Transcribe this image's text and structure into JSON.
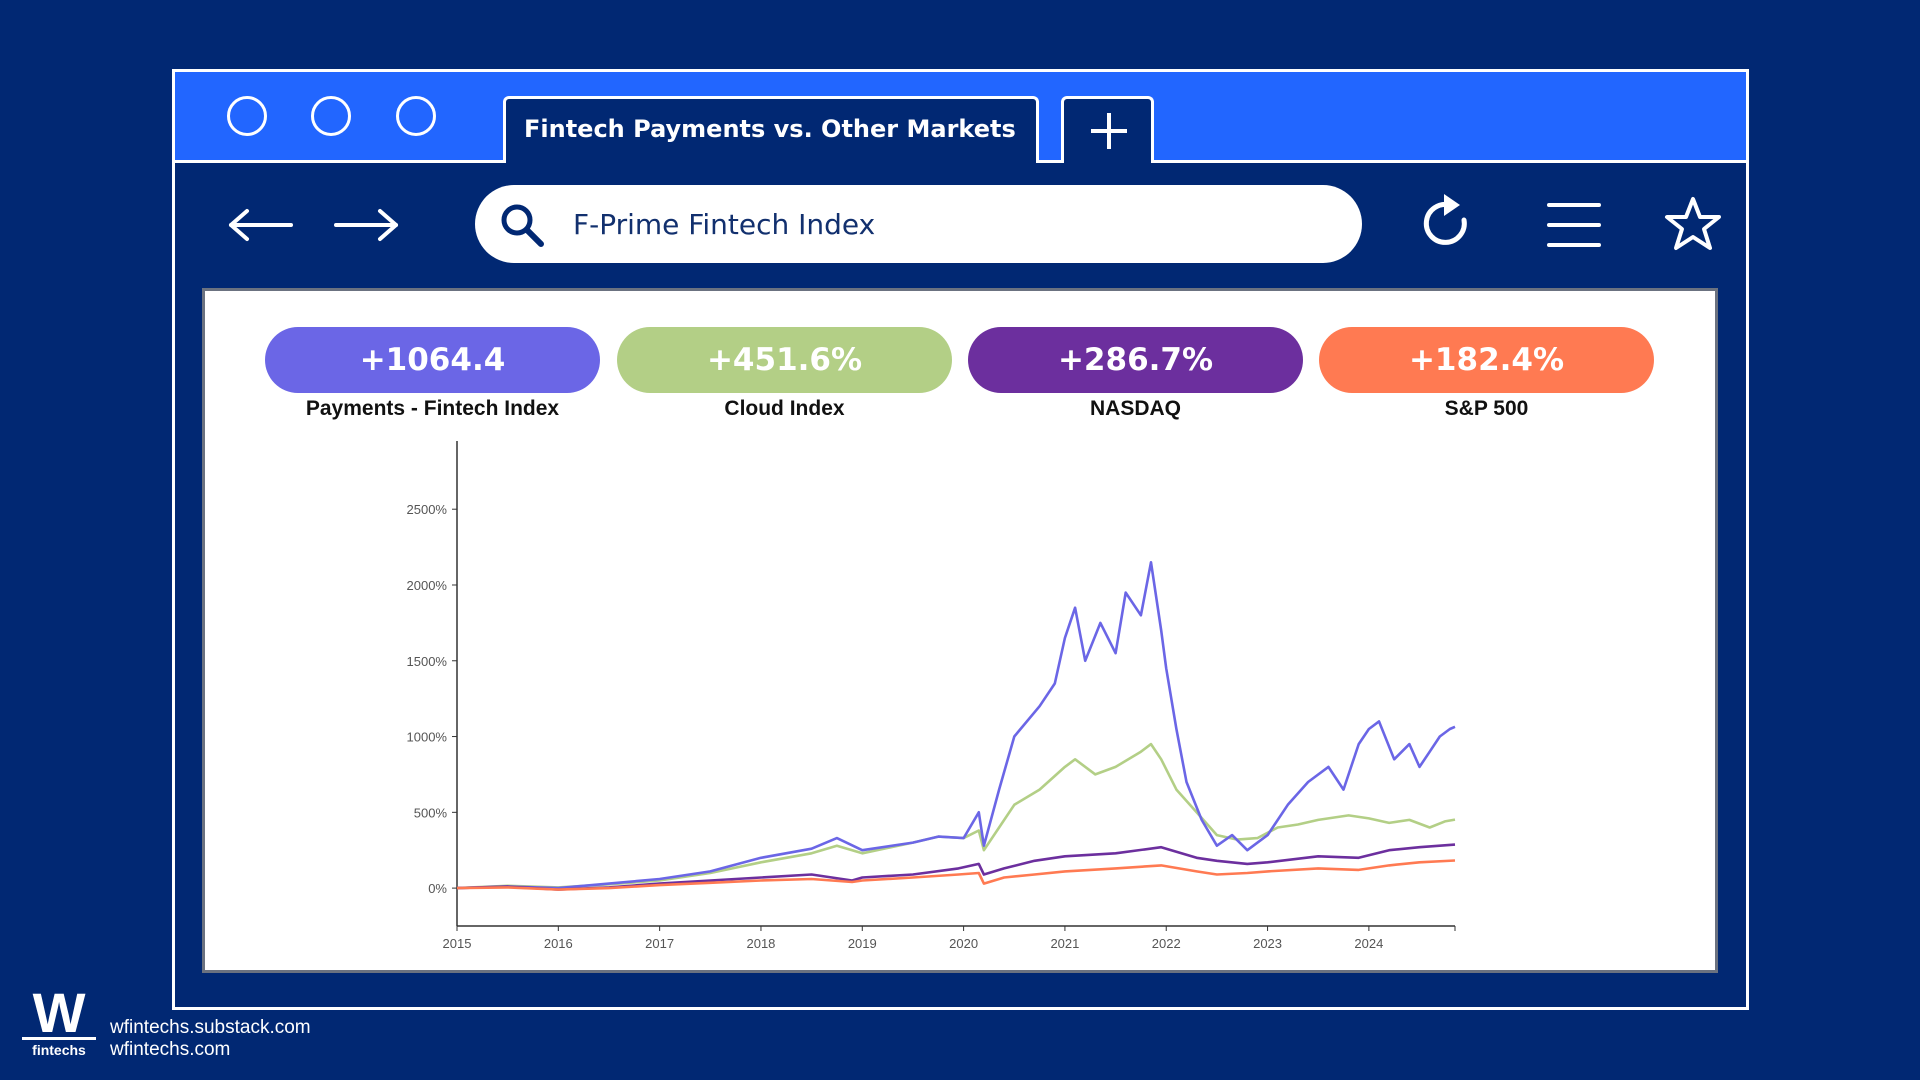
{
  "browser": {
    "tab_title": "Fintech Payments vs. Other Markets",
    "search_value": "F-Prime Fintech Index"
  },
  "icons": [
    "window-circle-icon",
    "plus-icon",
    "back-arrow-icon",
    "forward-arrow-icon",
    "search-icon",
    "reload-icon",
    "menu-icon",
    "star-icon"
  ],
  "stats": [
    {
      "value": "+1064.4",
      "label": "Payments - Fintech Index",
      "color": "#6b66e6"
    },
    {
      "value": "+451.6%",
      "label": "Cloud Index",
      "color": "#b3cf86"
    },
    {
      "value": "+286.7%",
      "label": "NASDAQ",
      "color": "#6c2f9e"
    },
    {
      "value": "+182.4%",
      "label": "S&P 500",
      "color": "#ff7a52"
    }
  ],
  "chart_data": {
    "type": "line",
    "x_ticks": [
      "2015",
      "2016",
      "2017",
      "2018",
      "2019",
      "2020",
      "2021",
      "2022",
      "2023",
      "2024"
    ],
    "y_ticks": [
      "0%",
      "500%",
      "1000%",
      "1500%",
      "2000%",
      "2500%"
    ],
    "ylim": [
      -250,
      2950
    ],
    "xlim": [
      2015.0,
      2024.85
    ],
    "grid": false,
    "series": [
      {
        "name": "Payments - Fintech Index",
        "color": "#6b66e6",
        "points": [
          [
            2015.0,
            0
          ],
          [
            2015.5,
            10
          ],
          [
            2016.0,
            0
          ],
          [
            2016.5,
            30
          ],
          [
            2017.0,
            60
          ],
          [
            2017.5,
            110
          ],
          [
            2018.0,
            200
          ],
          [
            2018.5,
            260
          ],
          [
            2018.75,
            330
          ],
          [
            2019.0,
            250
          ],
          [
            2019.5,
            300
          ],
          [
            2019.75,
            340
          ],
          [
            2020.0,
            330
          ],
          [
            2020.15,
            500
          ],
          [
            2020.2,
            280
          ],
          [
            2020.35,
            650
          ],
          [
            2020.5,
            1000
          ],
          [
            2020.75,
            1200
          ],
          [
            2020.9,
            1350
          ],
          [
            2021.0,
            1650
          ],
          [
            2021.1,
            1850
          ],
          [
            2021.2,
            1500
          ],
          [
            2021.35,
            1750
          ],
          [
            2021.5,
            1550
          ],
          [
            2021.6,
            1950
          ],
          [
            2021.75,
            1800
          ],
          [
            2021.85,
            2150
          ],
          [
            2021.95,
            1700
          ],
          [
            2022.0,
            1450
          ],
          [
            2022.1,
            1050
          ],
          [
            2022.2,
            700
          ],
          [
            2022.35,
            450
          ],
          [
            2022.5,
            280
          ],
          [
            2022.65,
            350
          ],
          [
            2022.8,
            250
          ],
          [
            2023.0,
            350
          ],
          [
            2023.2,
            550
          ],
          [
            2023.4,
            700
          ],
          [
            2023.6,
            800
          ],
          [
            2023.75,
            650
          ],
          [
            2023.9,
            950
          ],
          [
            2024.0,
            1050
          ],
          [
            2024.1,
            1100
          ],
          [
            2024.25,
            850
          ],
          [
            2024.4,
            950
          ],
          [
            2024.5,
            800
          ],
          [
            2024.6,
            900
          ],
          [
            2024.7,
            1000
          ],
          [
            2024.8,
            1050
          ],
          [
            2024.85,
            1064
          ]
        ]
      },
      {
        "name": "Cloud Index",
        "color": "#b3cf86",
        "points": [
          [
            2015.0,
            0
          ],
          [
            2015.5,
            15
          ],
          [
            2016.0,
            5
          ],
          [
            2016.5,
            25
          ],
          [
            2017.0,
            50
          ],
          [
            2017.5,
            100
          ],
          [
            2018.0,
            170
          ],
          [
            2018.5,
            230
          ],
          [
            2018.75,
            280
          ],
          [
            2019.0,
            230
          ],
          [
            2019.5,
            300
          ],
          [
            2019.75,
            340
          ],
          [
            2020.0,
            330
          ],
          [
            2020.15,
            380
          ],
          [
            2020.2,
            250
          ],
          [
            2020.35,
            400
          ],
          [
            2020.5,
            550
          ],
          [
            2020.75,
            650
          ],
          [
            2021.0,
            800
          ],
          [
            2021.1,
            850
          ],
          [
            2021.3,
            750
          ],
          [
            2021.5,
            800
          ],
          [
            2021.75,
            900
          ],
          [
            2021.85,
            950
          ],
          [
            2021.95,
            850
          ],
          [
            2022.1,
            650
          ],
          [
            2022.3,
            500
          ],
          [
            2022.5,
            350
          ],
          [
            2022.7,
            320
          ],
          [
            2022.9,
            330
          ],
          [
            2023.1,
            400
          ],
          [
            2023.3,
            420
          ],
          [
            2023.5,
            450
          ],
          [
            2023.8,
            480
          ],
          [
            2024.0,
            460
          ],
          [
            2024.2,
            430
          ],
          [
            2024.4,
            450
          ],
          [
            2024.6,
            400
          ],
          [
            2024.75,
            440
          ],
          [
            2024.85,
            452
          ]
        ]
      },
      {
        "name": "NASDAQ",
        "color": "#6c2f9e",
        "points": [
          [
            2015.0,
            0
          ],
          [
            2015.5,
            10
          ],
          [
            2016.0,
            -10
          ],
          [
            2016.5,
            5
          ],
          [
            2017.0,
            30
          ],
          [
            2017.5,
            50
          ],
          [
            2018.0,
            70
          ],
          [
            2018.5,
            90
          ],
          [
            2018.9,
            50
          ],
          [
            2019.0,
            70
          ],
          [
            2019.5,
            90
          ],
          [
            2019.95,
            130
          ],
          [
            2020.15,
            160
          ],
          [
            2020.2,
            90
          ],
          [
            2020.4,
            130
          ],
          [
            2020.7,
            180
          ],
          [
            2021.0,
            210
          ],
          [
            2021.5,
            230
          ],
          [
            2021.95,
            270
          ],
          [
            2022.3,
            200
          ],
          [
            2022.5,
            180
          ],
          [
            2022.8,
            160
          ],
          [
            2023.0,
            170
          ],
          [
            2023.5,
            210
          ],
          [
            2023.9,
            200
          ],
          [
            2024.2,
            250
          ],
          [
            2024.5,
            270
          ],
          [
            2024.85,
            287
          ]
        ]
      },
      {
        "name": "S&P 500",
        "color": "#ff7a52",
        "points": [
          [
            2015.0,
            0
          ],
          [
            2015.5,
            5
          ],
          [
            2016.0,
            -10
          ],
          [
            2016.5,
            0
          ],
          [
            2017.0,
            20
          ],
          [
            2017.5,
            35
          ],
          [
            2018.0,
            50
          ],
          [
            2018.5,
            60
          ],
          [
            2018.9,
            40
          ],
          [
            2019.0,
            50
          ],
          [
            2019.5,
            70
          ],
          [
            2019.95,
            90
          ],
          [
            2020.15,
            100
          ],
          [
            2020.2,
            30
          ],
          [
            2020.4,
            70
          ],
          [
            2020.7,
            90
          ],
          [
            2021.0,
            110
          ],
          [
            2021.5,
            130
          ],
          [
            2021.95,
            150
          ],
          [
            2022.3,
            110
          ],
          [
            2022.5,
            90
          ],
          [
            2022.8,
            100
          ],
          [
            2023.0,
            110
          ],
          [
            2023.5,
            130
          ],
          [
            2023.9,
            120
          ],
          [
            2024.2,
            150
          ],
          [
            2024.5,
            170
          ],
          [
            2024.85,
            182
          ]
        ]
      }
    ]
  },
  "footer": {
    "logo_letter": "W",
    "logo_sub": "fintechs",
    "link1": "wfintechs.substack.com",
    "link2": "wfintechs.com"
  }
}
